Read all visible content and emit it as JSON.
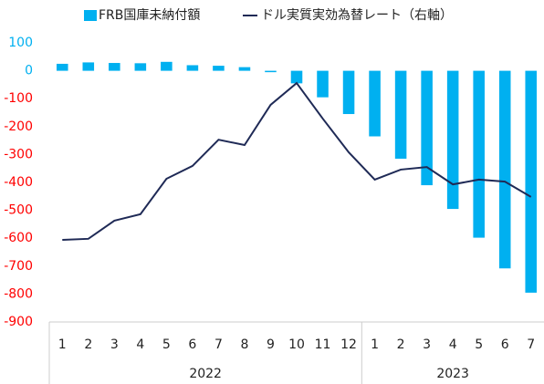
{
  "chart_data": {
    "type": "bar_line",
    "category_groups": [
      {
        "name": "2022",
        "categories": [
          "1",
          "2",
          "3",
          "4",
          "5",
          "6",
          "7",
          "8",
          "9",
          "10",
          "11",
          "12"
        ]
      },
      {
        "name": "2023",
        "categories": [
          "1",
          "2",
          "3",
          "4",
          "5",
          "6",
          "7"
        ]
      }
    ],
    "series": [
      {
        "name": "FRB国庫未納付額",
        "type": "bar",
        "color": "#00b0f0",
        "values": [
          25,
          30,
          28,
          27,
          32,
          20,
          18,
          13,
          -5,
          -45,
          -95,
          -155,
          -235,
          -315,
          -410,
          -495,
          -598,
          -708,
          -795
        ]
      },
      {
        "name": "ドル実質実効為替レート（右軸）",
        "type": "line",
        "color": "#1f2a56",
        "values": [
          -606,
          -602,
          -537,
          -514,
          -387,
          -341,
          -247,
          -266,
          -122,
          -44,
          -171,
          -292,
          -390,
          -354,
          -345,
          -407,
          -390,
          -397,
          -452
        ]
      }
    ],
    "ylim": [
      -900,
      100
    ],
    "yticks": [
      -900,
      -800,
      -700,
      -600,
      -500,
      -400,
      -300,
      -200,
      -100,
      0,
      100
    ],
    "ytick_colors": [
      "#ff0000",
      "#ff0000",
      "#ff0000",
      "#ff0000",
      "#ff0000",
      "#ff0000",
      "#ff0000",
      "#ff0000",
      "#ff0000",
      "#00b0f0",
      "#00b0f0"
    ],
    "legend": "top"
  }
}
